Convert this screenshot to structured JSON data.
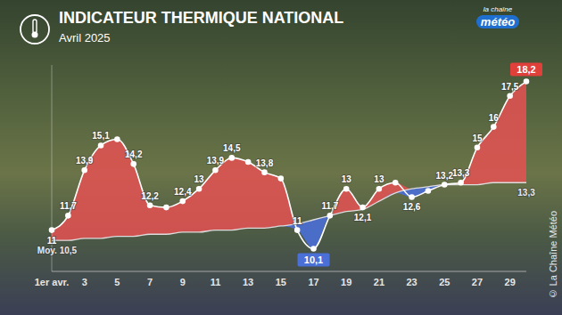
{
  "chart_data": {
    "type": "area",
    "title": "INDICATEUR THERMIQUE NATIONAL",
    "subtitle": "Avril 2025",
    "logo": [
      "la chaîne",
      "météo"
    ],
    "copyright": "© La Chaîne Météo",
    "categories": [
      "1er avr.",
      null,
      "3",
      null,
      "5",
      null,
      "7",
      null,
      "9",
      null,
      "11",
      null,
      "13",
      null,
      "15",
      null,
      "17",
      null,
      "19",
      null,
      "21",
      null,
      "23",
      null,
      "25",
      null,
      "27",
      null,
      "29",
      null
    ],
    "series": [
      {
        "color": "#ffffff",
        "values": [
          11,
          11.7,
          13.9,
          15.1,
          15.4,
          14.2,
          12.2,
          12.1,
          12.4,
          13,
          13.9,
          14.5,
          14.3,
          13.8,
          13.5,
          11,
          10.1,
          11.7,
          13,
          12.1,
          13,
          13.3,
          12.6,
          12.9,
          13.2,
          13.3,
          15,
          16,
          17.5,
          18.2
        ],
        "value_labels": [
          "11",
          "11,7",
          "13,9",
          "15,1",
          null,
          "14,2",
          "12,2",
          null,
          "12,4",
          "13",
          "13,9",
          "14,5",
          null,
          "13,8",
          null,
          "11",
          "10,1",
          "11,7",
          "13",
          "12,1",
          "13",
          null,
          "12,6",
          null,
          "13,2",
          "13,3",
          "15",
          "16",
          "17,5",
          "18,2"
        ]
      },
      {
        "color": "#dcdcdc",
        "values": [
          10.5,
          10.5,
          10.6,
          10.6,
          10.7,
          10.7,
          10.8,
          10.8,
          10.9,
          10.9,
          11,
          11,
          11.1,
          11.1,
          11.2,
          11.3,
          11.5,
          11.7,
          11.9,
          12,
          12.4,
          12.8,
          13,
          13.1,
          13.2,
          13.2,
          13.2,
          13.3,
          13.3,
          13.3
        ],
        "value_labels": [
          "Moy. 10,5",
          null,
          null,
          null,
          null,
          null,
          null,
          null,
          null,
          null,
          null,
          null,
          null,
          null,
          null,
          null,
          null,
          null,
          null,
          null,
          null,
          null,
          null,
          null,
          null,
          null,
          null,
          null,
          null,
          "13,3"
        ]
      }
    ],
    "ylim": [
      9,
      19
    ],
    "tick_labels": "x",
    "data_labels": true,
    "grid": false
  }
}
